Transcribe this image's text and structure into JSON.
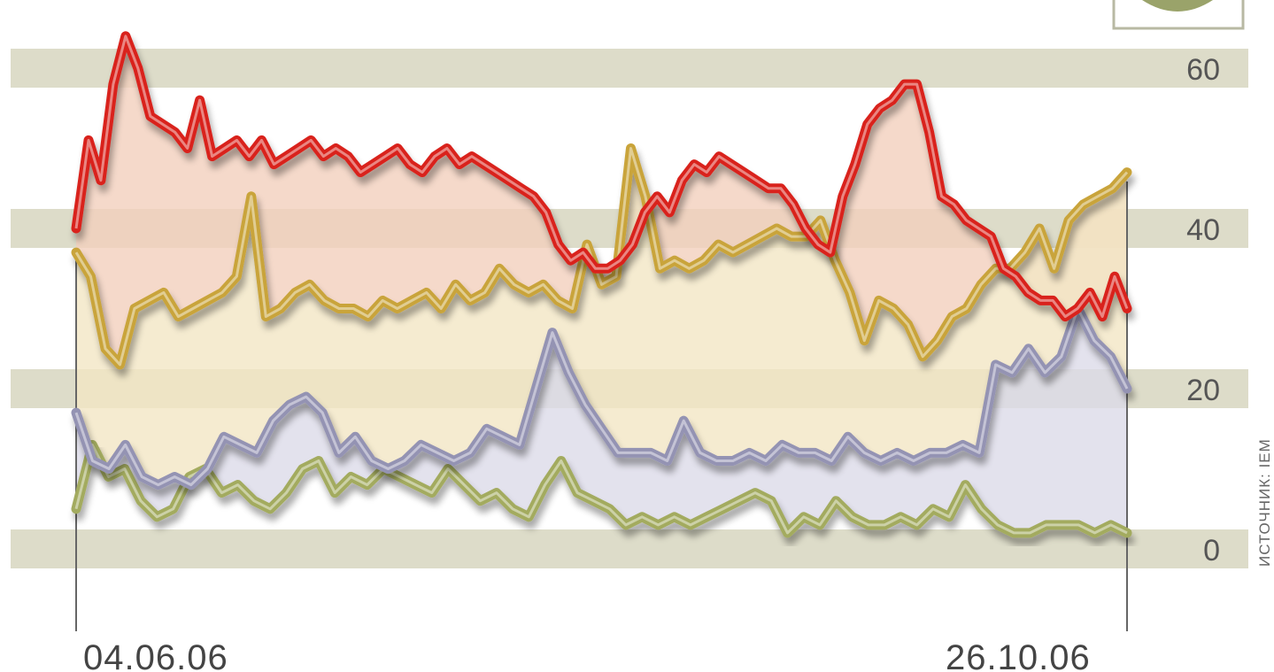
{
  "chart_data": {
    "type": "line",
    "ylim": [
      0,
      60
    ],
    "yticks": [
      "0",
      "20",
      "40",
      "60"
    ],
    "x_start_label": "04.06.06",
    "x_end_label": "26.10.06",
    "source": "ИСТОЧНИК: IEM",
    "grid": "horizontal bands",
    "series": [
      {
        "color": "#d9241c",
        "area_fill": "#f2cfbd",
        "values": [
          40,
          51,
          46,
          58,
          64,
          60,
          54,
          53,
          52,
          50,
          56,
          49,
          50,
          51,
          49,
          51,
          48,
          49,
          50,
          51,
          49,
          50,
          49,
          47,
          48,
          49,
          50,
          48,
          47,
          49,
          50,
          48,
          49,
          48,
          47,
          46,
          45,
          44,
          42,
          38,
          36,
          37,
          35,
          35,
          36,
          38,
          42,
          44,
          42,
          46,
          48,
          47,
          49,
          48,
          47,
          46,
          45,
          45,
          43,
          40,
          38,
          37,
          44,
          48,
          53,
          55,
          56,
          58,
          58,
          52,
          44,
          43,
          41,
          40,
          39,
          35,
          34,
          32,
          31,
          31,
          29,
          30,
          32,
          29,
          34,
          30
        ]
      },
      {
        "color": "#c9a43a",
        "area_fill": "#f3e6c4",
        "values": [
          37,
          34,
          25,
          23,
          30,
          31,
          32,
          29,
          30,
          31,
          32,
          34,
          44,
          29,
          30,
          32,
          33,
          31,
          30,
          30,
          29,
          31,
          30,
          31,
          32,
          30,
          33,
          31,
          32,
          35,
          33,
          32,
          33,
          31,
          30,
          38,
          33,
          34,
          50,
          44,
          35,
          36,
          35,
          36,
          38,
          37,
          38,
          39,
          40,
          39,
          39,
          41,
          36,
          32,
          26,
          31,
          30,
          28,
          24,
          26,
          29,
          30,
          33,
          35,
          35,
          37,
          40,
          35,
          41,
          43,
          44,
          45,
          47
        ]
      },
      {
        "color": "#9493b3",
        "area_fill": "#dcdbe8",
        "values": [
          17,
          11,
          10,
          13,
          9,
          8,
          9,
          8,
          10,
          14,
          13,
          12,
          16,
          18,
          19,
          17,
          12,
          14,
          11,
          10,
          11,
          13,
          12,
          11,
          12,
          15,
          14,
          13,
          20,
          27,
          22,
          18,
          15,
          12,
          12,
          12,
          11,
          16,
          12,
          11,
          11,
          12,
          11,
          13,
          12,
          12,
          11,
          14,
          12,
          11,
          12,
          11,
          12,
          12,
          13,
          12,
          23,
          22,
          25,
          22,
          24,
          30,
          26,
          24,
          20
        ]
      },
      {
        "color": "#a3ab5f",
        "area_fill": "none",
        "values": [
          5,
          13,
          9,
          10,
          6,
          4,
          5,
          9,
          10,
          7,
          8,
          6,
          5,
          7,
          10,
          11,
          7,
          9,
          8,
          10,
          9,
          8,
          7,
          10,
          8,
          6,
          7,
          5,
          4,
          8,
          11,
          7,
          6,
          5,
          3,
          4,
          3,
          4,
          3,
          4,
          5,
          6,
          7,
          6,
          2,
          4,
          3,
          6,
          4,
          3,
          3,
          4,
          3,
          5,
          4,
          8,
          5,
          3,
          2,
          2,
          3,
          3,
          3,
          2,
          3,
          2
        ]
      }
    ]
  }
}
